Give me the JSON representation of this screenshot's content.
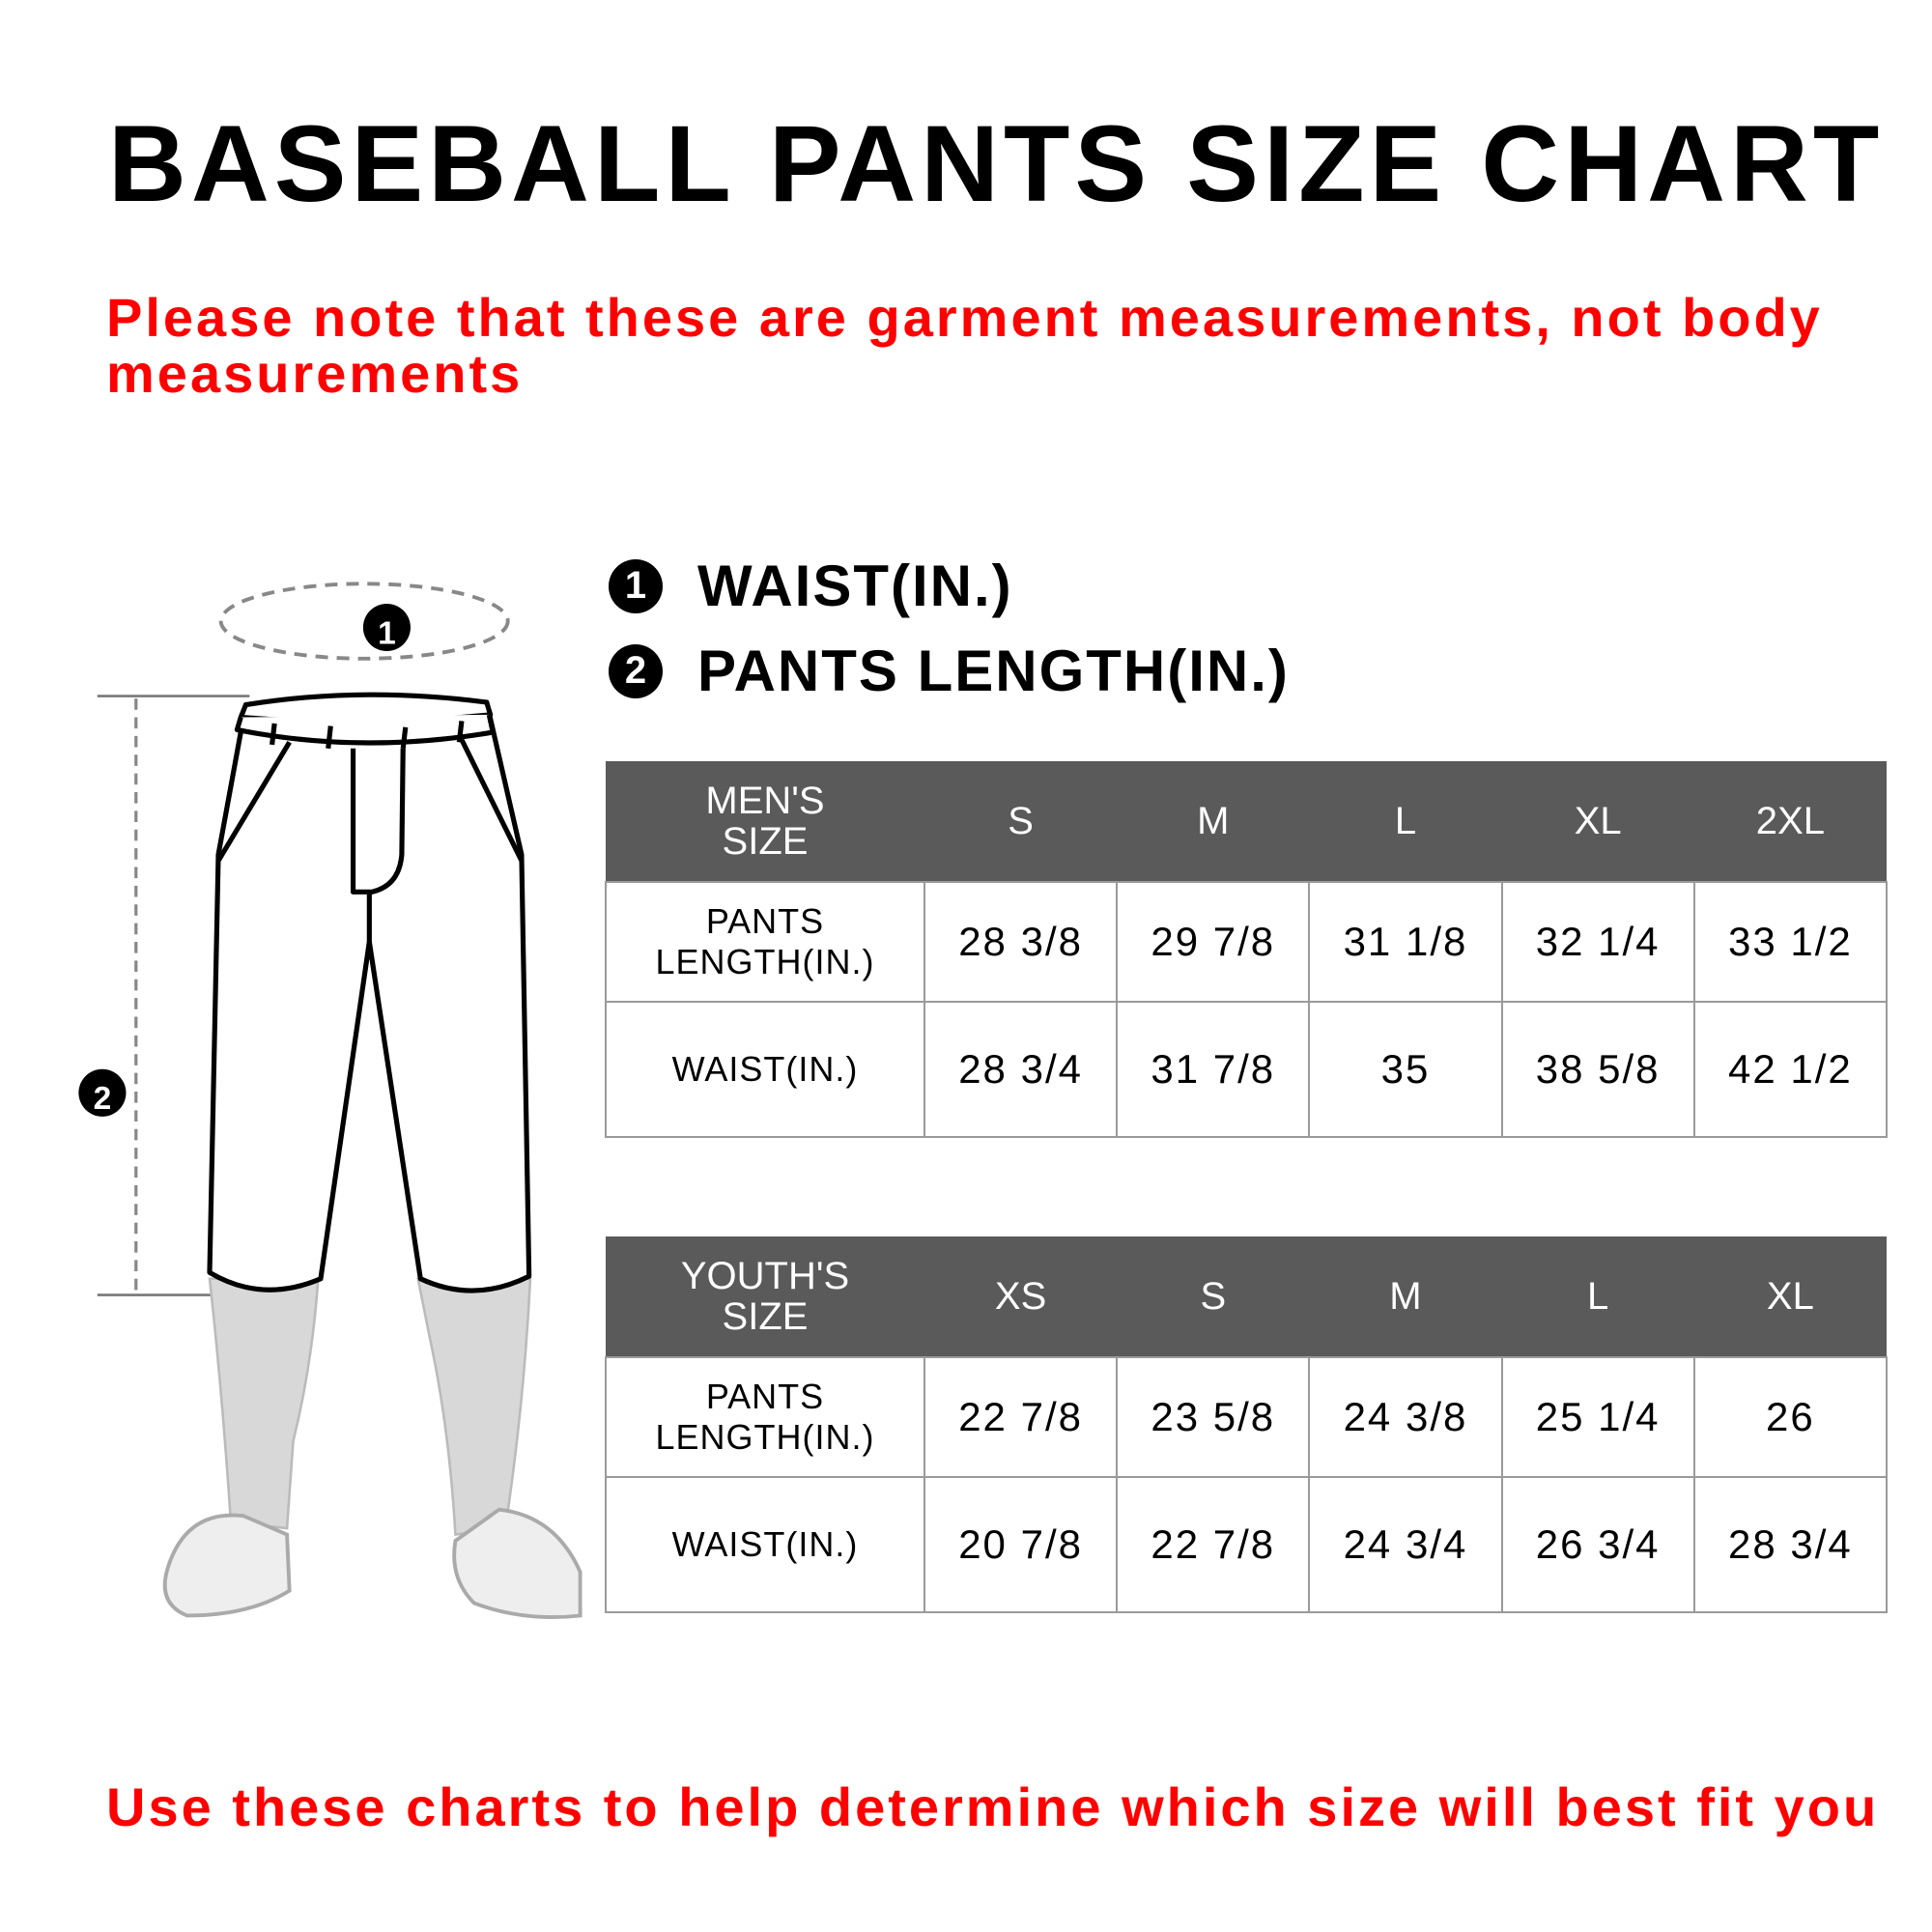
{
  "title": "BASEBALL PANTS SIZE CHART",
  "note_top": [
    "Please note that these are garment measurements, not body",
    "measurements"
  ],
  "note_bottom": "Use these charts to help determine which size will best fit you",
  "legend": [
    {
      "num": "1",
      "label": "WAIST(IN.)"
    },
    {
      "num": "2",
      "label": "PANTS LENGTH(IN.)"
    }
  ],
  "diagram": {
    "marker_waist": "1",
    "marker_length": "2"
  },
  "colors": {
    "header": "#5a5a5a",
    "note": "#ff0000"
  },
  "mens": {
    "header": [
      "MEN'S SIZE",
      "S",
      "M",
      "L",
      "XL",
      "2XL"
    ],
    "rows": [
      {
        "label": "PANTS LENGTH(IN.)",
        "values": [
          "28 3/8",
          "29 7/8",
          "31 1/8",
          "32 1/4",
          "33 1/2"
        ]
      },
      {
        "label": "WAIST(IN.)",
        "values": [
          "28 3/4",
          "31 7/8",
          "35",
          "38 5/8",
          "42 1/2"
        ]
      }
    ]
  },
  "youth": {
    "header": [
      "YOUTH'S SIZE",
      "XS",
      "S",
      "M",
      "L",
      "XL"
    ],
    "rows": [
      {
        "label": "PANTS LENGTH(IN.)",
        "values": [
          "22 7/8",
          "23 5/8",
          "24 3/8",
          "25 1/4",
          "26"
        ]
      },
      {
        "label": "WAIST(IN.)",
        "values": [
          "20 7/8",
          "22 7/8",
          "24 3/4",
          "26 3/4",
          "28 3/4"
        ]
      }
    ]
  }
}
